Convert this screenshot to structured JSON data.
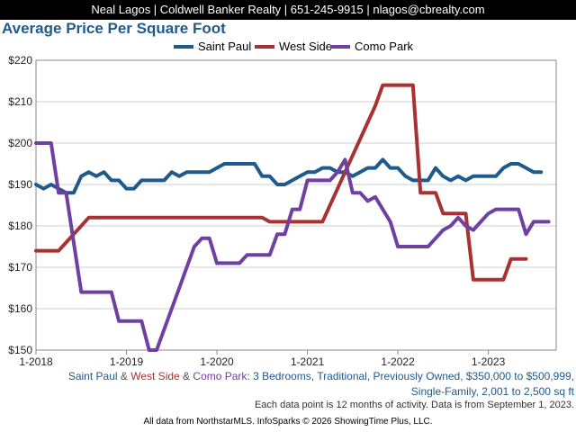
{
  "header": {
    "contact": "Neal Lagos | Coldwell Banker Realty | 651-245-9915 | nlagos@cbrealty.com"
  },
  "chart_data": {
    "type": "line",
    "title": "Average Price Per Square Foot",
    "ylim": [
      150,
      220
    ],
    "y_ticks": [
      "$150",
      "$160",
      "$170",
      "$180",
      "$190",
      "$200",
      "$210",
      "$220"
    ],
    "x_ticks": [
      "1-2018",
      "1-2019",
      "1-2020",
      "1-2021",
      "1-2022",
      "1-2023"
    ],
    "grid": true,
    "legend_position": "top",
    "series": [
      {
        "name": "Saint Paul",
        "color": "#1f5a8c",
        "points": [
          [
            "2018-01",
            190
          ],
          [
            "2018-02",
            189
          ],
          [
            "2018-03",
            190
          ],
          [
            "2018-04",
            189
          ],
          [
            "2018-05",
            188
          ],
          [
            "2018-06",
            188
          ],
          [
            "2018-07",
            192
          ],
          [
            "2018-08",
            193
          ],
          [
            "2018-09",
            192
          ],
          [
            "2018-10",
            193
          ],
          [
            "2018-11",
            191
          ],
          [
            "2018-12",
            191
          ],
          [
            "2019-01",
            189
          ],
          [
            "2019-02",
            189
          ],
          [
            "2019-03",
            191
          ],
          [
            "2019-04",
            191
          ],
          [
            "2019-05",
            191
          ],
          [
            "2019-06",
            191
          ],
          [
            "2019-07",
            193
          ],
          [
            "2019-08",
            192
          ],
          [
            "2019-09",
            193
          ],
          [
            "2019-10",
            193
          ],
          [
            "2019-11",
            193
          ],
          [
            "2019-12",
            193
          ],
          [
            "2020-01",
            194
          ],
          [
            "2020-02",
            195
          ],
          [
            "2020-03",
            195
          ],
          [
            "2020-04",
            195
          ],
          [
            "2020-05",
            195
          ],
          [
            "2020-06",
            195
          ],
          [
            "2020-07",
            192
          ],
          [
            "2020-08",
            192
          ],
          [
            "2020-09",
            190
          ],
          [
            "2020-10",
            190
          ],
          [
            "2020-11",
            191
          ],
          [
            "2020-12",
            192
          ],
          [
            "2021-01",
            193
          ],
          [
            "2021-02",
            193
          ],
          [
            "2021-03",
            194
          ],
          [
            "2021-04",
            194
          ],
          [
            "2021-05",
            193
          ],
          [
            "2021-06",
            193
          ],
          [
            "2021-07",
            192
          ],
          [
            "2021-08",
            193
          ],
          [
            "2021-09",
            194
          ],
          [
            "2021-10",
            194
          ],
          [
            "2021-11",
            196
          ],
          [
            "2021-12",
            194
          ],
          [
            "2022-01",
            194
          ],
          [
            "2022-02",
            192
          ],
          [
            "2022-03",
            191
          ],
          [
            "2022-04",
            191
          ],
          [
            "2022-05",
            191
          ],
          [
            "2022-06",
            194
          ],
          [
            "2022-07",
            192
          ],
          [
            "2022-08",
            191
          ],
          [
            "2022-09",
            192
          ],
          [
            "2022-10",
            191
          ],
          [
            "2022-11",
            192
          ],
          [
            "2022-12",
            192
          ],
          [
            "2023-01",
            192
          ],
          [
            "2023-02",
            192
          ],
          [
            "2023-03",
            194
          ],
          [
            "2023-04",
            195
          ],
          [
            "2023-05",
            195
          ],
          [
            "2023-06",
            194
          ],
          [
            "2023-07",
            193
          ],
          [
            "2023-08",
            193
          ]
        ]
      },
      {
        "name": "West Side",
        "color": "#a83232",
        "points": [
          [
            "2018-01",
            174
          ],
          [
            "2018-02",
            174
          ],
          [
            "2018-03",
            174
          ],
          [
            "2018-04",
            174
          ],
          [
            "2018-05",
            176
          ],
          [
            "2018-06",
            178
          ],
          [
            "2018-07",
            180
          ],
          [
            "2018-08",
            182
          ],
          [
            "2018-09",
            182
          ],
          [
            "2018-10",
            182
          ],
          [
            "2018-11",
            182
          ],
          [
            "2018-12",
            182
          ],
          [
            "2019-01",
            182
          ],
          [
            "2019-02",
            182
          ],
          [
            "2019-03",
            182
          ],
          [
            "2019-04",
            182
          ],
          [
            "2019-05",
            182
          ],
          [
            "2019-06",
            182
          ],
          [
            "2019-07",
            182
          ],
          [
            "2019-08",
            182
          ],
          [
            "2019-09",
            182
          ],
          [
            "2019-10",
            182
          ],
          [
            "2019-11",
            182
          ],
          [
            "2019-12",
            182
          ],
          [
            "2020-01",
            182
          ],
          [
            "2020-02",
            182
          ],
          [
            "2020-03",
            182
          ],
          [
            "2020-04",
            182
          ],
          [
            "2020-05",
            182
          ],
          [
            "2020-06",
            182
          ],
          [
            "2020-07",
            182
          ],
          [
            "2020-08",
            181
          ],
          [
            "2020-09",
            181
          ],
          [
            "2020-10",
            181
          ],
          [
            "2020-11",
            181
          ],
          [
            "2020-12",
            181
          ],
          [
            "2021-01",
            181
          ],
          [
            "2021-02",
            181
          ],
          [
            "2021-03",
            181
          ],
          [
            "2021-04",
            185
          ],
          [
            "2021-05",
            189
          ],
          [
            "2021-06",
            193
          ],
          [
            "2021-07",
            197
          ],
          [
            "2021-08",
            201
          ],
          [
            "2021-09",
            205
          ],
          [
            "2021-10",
            209
          ],
          [
            "2021-11",
            214
          ],
          [
            "2021-12",
            214
          ],
          [
            "2022-01",
            214
          ],
          [
            "2022-02",
            214
          ],
          [
            "2022-03",
            214
          ],
          [
            "2022-04",
            188
          ],
          [
            "2022-05",
            188
          ],
          [
            "2022-06",
            188
          ],
          [
            "2022-07",
            183
          ],
          [
            "2022-08",
            183
          ],
          [
            "2022-09",
            183
          ],
          [
            "2022-10",
            183
          ],
          [
            "2022-11",
            167
          ],
          [
            "2022-12",
            167
          ],
          [
            "2023-01",
            167
          ],
          [
            "2023-02",
            167
          ],
          [
            "2023-03",
            167
          ],
          [
            "2023-04",
            172
          ],
          [
            "2023-05",
            172
          ],
          [
            "2023-06",
            172
          ]
        ]
      },
      {
        "name": "Como Park",
        "color": "#7040a0",
        "points": [
          [
            "2018-01",
            200
          ],
          [
            "2018-02",
            200
          ],
          [
            "2018-03",
            200
          ],
          [
            "2018-04",
            188
          ],
          [
            "2018-05",
            188
          ],
          [
            "2018-06",
            176
          ],
          [
            "2018-07",
            164
          ],
          [
            "2018-08",
            164
          ],
          [
            "2018-09",
            164
          ],
          [
            "2018-10",
            164
          ],
          [
            "2018-11",
            164
          ],
          [
            "2018-12",
            157
          ],
          [
            "2019-01",
            157
          ],
          [
            "2019-02",
            157
          ],
          [
            "2019-03",
            157
          ],
          [
            "2019-04",
            150
          ],
          [
            "2019-05",
            150
          ],
          [
            "2019-06",
            155
          ],
          [
            "2019-07",
            160
          ],
          [
            "2019-08",
            165
          ],
          [
            "2019-09",
            170
          ],
          [
            "2019-10",
            175
          ],
          [
            "2019-11",
            177
          ],
          [
            "2019-12",
            177
          ],
          [
            "2020-01",
            171
          ],
          [
            "2020-02",
            171
          ],
          [
            "2020-03",
            171
          ],
          [
            "2020-04",
            171
          ],
          [
            "2020-05",
            173
          ],
          [
            "2020-06",
            173
          ],
          [
            "2020-07",
            173
          ],
          [
            "2020-08",
            173
          ],
          [
            "2020-09",
            178
          ],
          [
            "2020-10",
            178
          ],
          [
            "2020-11",
            184
          ],
          [
            "2020-12",
            184
          ],
          [
            "2021-01",
            191
          ],
          [
            "2021-02",
            191
          ],
          [
            "2021-03",
            191
          ],
          [
            "2021-04",
            191
          ],
          [
            "2021-05",
            193
          ],
          [
            "2021-06",
            196
          ],
          [
            "2021-07",
            188
          ],
          [
            "2021-08",
            188
          ],
          [
            "2021-09",
            186
          ],
          [
            "2021-10",
            187
          ],
          [
            "2021-11",
            184
          ],
          [
            "2021-12",
            181
          ],
          [
            "2022-01",
            175
          ],
          [
            "2022-02",
            175
          ],
          [
            "2022-03",
            175
          ],
          [
            "2022-04",
            175
          ],
          [
            "2022-05",
            175
          ],
          [
            "2022-06",
            177
          ],
          [
            "2022-07",
            179
          ],
          [
            "2022-08",
            180
          ],
          [
            "2022-09",
            182
          ],
          [
            "2022-10",
            180
          ],
          [
            "2022-11",
            179
          ],
          [
            "2022-12",
            181
          ],
          [
            "2023-01",
            183
          ],
          [
            "2023-02",
            184
          ],
          [
            "2023-03",
            184
          ],
          [
            "2023-04",
            184
          ],
          [
            "2023-05",
            184
          ],
          [
            "2023-06",
            178
          ],
          [
            "2023-07",
            181
          ],
          [
            "2023-08",
            181
          ],
          [
            "2023-09",
            181
          ]
        ]
      }
    ]
  },
  "footnote": {
    "amp": "&",
    "colon_text": ": 3 Bedrooms, Traditional, Previously Owned, $350,000 to $500,999,",
    "line2": "Single-Family, 2,001 to 2,500 sq ft",
    "caveat": "Each data point is 12 months of activity. Data is from September 1, 2023.",
    "credit": "All data from NorthstarMLS. InfoSparks © 2026 ShowingTime Plus, LLC."
  }
}
